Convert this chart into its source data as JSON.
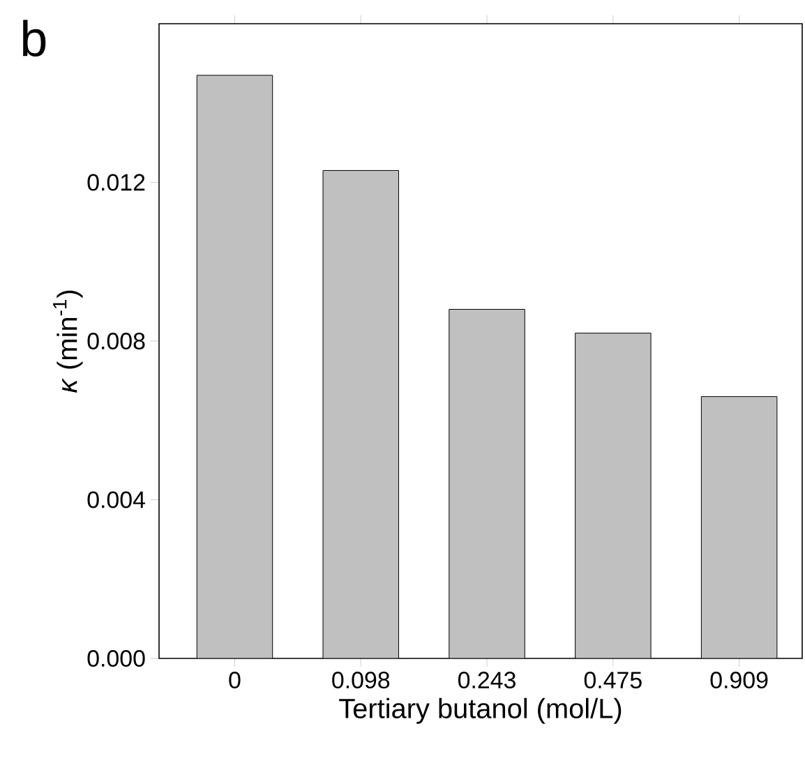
{
  "chart_data": {
    "type": "bar",
    "categories": [
      "0",
      "0.098",
      "0.243",
      "0.475",
      "0.909"
    ],
    "values": [
      0.0147,
      0.0123,
      0.0088,
      0.0082,
      0.0066
    ],
    "color": "#c0c0c0",
    "ylim": [
      0,
      0.016
    ],
    "yticks": [
      {
        "value": 0,
        "label": "0.000"
      },
      {
        "value": 0.004,
        "label": "0.004"
      },
      {
        "value": 0.008,
        "label": "0.008"
      },
      {
        "value": 0.012,
        "label": "0.012"
      }
    ],
    "xlabel": "Tertiary butanol (mol/L)",
    "ylabel": "*κ* (min$^{-1}$)",
    "annotations": [
      "b"
    ]
  }
}
